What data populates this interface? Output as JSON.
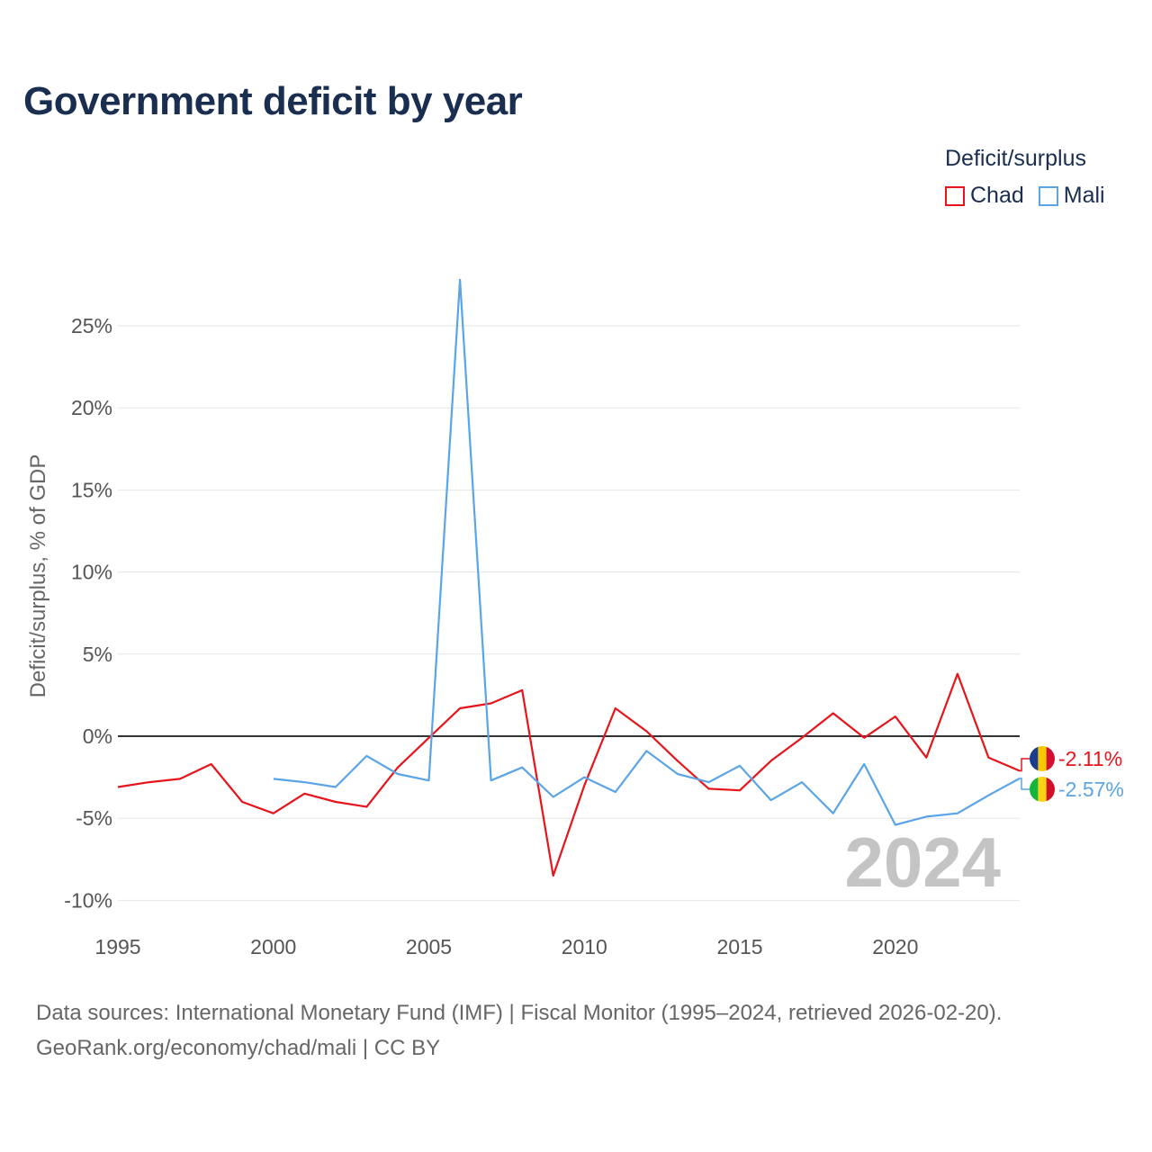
{
  "chart_data": {
    "type": "line",
    "title": "Government deficit by year",
    "xlabel": "",
    "ylabel": "Deficit/surplus, % of GDP",
    "legend_title": "Deficit/surplus",
    "legend_position": "top-right",
    "year_watermark": "2024",
    "xlim": [
      1995,
      2024
    ],
    "ylim": [
      -10,
      28
    ],
    "x_ticks": [
      1995,
      2000,
      2005,
      2010,
      2015,
      2020
    ],
    "x_tick_labels": [
      "1995",
      "2000",
      "2005",
      "2010",
      "2015",
      "2020"
    ],
    "y_ticks": [
      -10,
      -5,
      0,
      5,
      10,
      15,
      20,
      25
    ],
    "y_tick_labels": [
      "-10%",
      "-5%",
      "0%",
      "5%",
      "10%",
      "15%",
      "20%",
      "25%"
    ],
    "grid": true,
    "series": [
      {
        "name": "Chad",
        "color": "#e8141b",
        "end_label": "-2.11%",
        "flag_colors": [
          "#1a3c8f",
          "#f7c800",
          "#d21034"
        ],
        "x": [
          1995,
          1996,
          1997,
          1998,
          1999,
          2000,
          2001,
          2002,
          2003,
          2004,
          2005,
          2006,
          2007,
          2008,
          2009,
          2010,
          2011,
          2012,
          2013,
          2014,
          2015,
          2016,
          2017,
          2018,
          2019,
          2020,
          2021,
          2022,
          2023,
          2024
        ],
        "values": [
          -3.1,
          -2.8,
          -2.6,
          -1.7,
          -4.0,
          -4.7,
          -3.5,
          -4.0,
          -4.3,
          -1.9,
          -0.1,
          1.7,
          2.0,
          2.8,
          -8.5,
          -3.0,
          1.7,
          0.3,
          -1.5,
          -3.2,
          -3.3,
          -1.5,
          -0.1,
          1.4,
          -0.1,
          1.2,
          -1.3,
          3.8,
          -1.3,
          -2.11
        ]
      },
      {
        "name": "Mali",
        "color": "#5ba4e6",
        "end_label": "-2.57%",
        "flag_colors": [
          "#14b53a",
          "#fcd116",
          "#ce1126"
        ],
        "x": [
          2000,
          2001,
          2002,
          2003,
          2004,
          2005,
          2006,
          2007,
          2008,
          2009,
          2010,
          2011,
          2012,
          2013,
          2014,
          2015,
          2016,
          2017,
          2018,
          2019,
          2020,
          2021,
          2022,
          2023,
          2024
        ],
        "values": [
          -2.6,
          -2.8,
          -3.1,
          -1.2,
          -2.3,
          -2.7,
          27.8,
          -2.7,
          -1.9,
          -3.7,
          -2.5,
          -3.4,
          -0.9,
          -2.3,
          -2.8,
          -1.8,
          -3.9,
          -2.8,
          -4.7,
          -1.7,
          -5.4,
          -4.9,
          -4.7,
          -3.6,
          -2.57
        ]
      }
    ],
    "source_line1": "Data sources: International Monetary Fund (IMF) | Fiscal Monitor (1995–2024, retrieved 2026-02-20).",
    "source_line2": "GeoRank.org/economy/chad/mali | CC BY"
  }
}
